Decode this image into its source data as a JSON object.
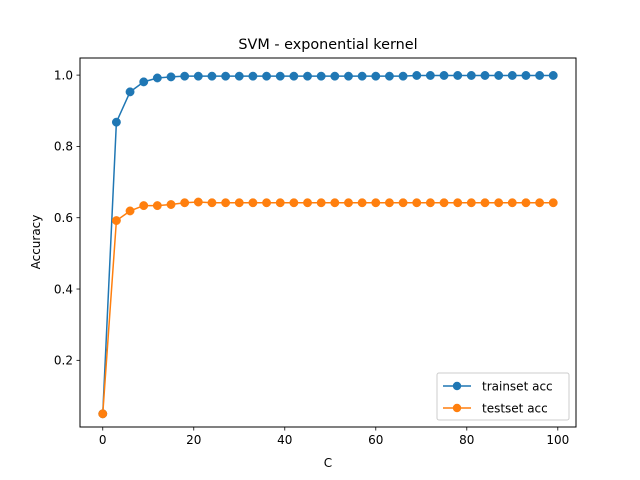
{
  "chart_data": {
    "type": "line",
    "title": "SVM - exponential kernel",
    "xlabel": "C",
    "ylabel": "Accuracy",
    "xlim": [
      -5,
      104
    ],
    "ylim": [
      0.013,
      1.048
    ],
    "xticks": [
      0,
      20,
      40,
      60,
      80,
      100
    ],
    "yticks": [
      0.2,
      0.4,
      0.6,
      0.8,
      1.0
    ],
    "xtick_labels": [
      "0",
      "20",
      "40",
      "60",
      "80",
      "100"
    ],
    "ytick_labels": [
      "0.2",
      "0.4",
      "0.6",
      "0.8",
      "1.0"
    ],
    "grid": false,
    "legend_position": "lower-right",
    "x": [
      0,
      3,
      6,
      9,
      12,
      15,
      18,
      21,
      24,
      27,
      30,
      33,
      36,
      39,
      42,
      45,
      48,
      51,
      54,
      57,
      60,
      63,
      66,
      69,
      72,
      75,
      78,
      81,
      84,
      87,
      90,
      93,
      96,
      99
    ],
    "series": [
      {
        "name": "trainset acc",
        "color": "#1f77b4",
        "values": [
          0.05,
          0.868,
          0.953,
          0.981,
          0.992,
          0.995,
          0.997,
          0.997,
          0.997,
          0.997,
          0.997,
          0.997,
          0.997,
          0.997,
          0.997,
          0.997,
          0.997,
          0.997,
          0.997,
          0.997,
          0.997,
          0.997,
          0.997,
          0.999,
          0.999,
          0.999,
          0.999,
          0.999,
          0.999,
          0.999,
          0.999,
          0.999,
          0.999,
          0.999
        ]
      },
      {
        "name": "testset acc",
        "color": "#ff7f0e",
        "values": [
          0.05,
          0.592,
          0.619,
          0.634,
          0.634,
          0.637,
          0.642,
          0.644,
          0.642,
          0.642,
          0.642,
          0.642,
          0.642,
          0.642,
          0.642,
          0.642,
          0.642,
          0.642,
          0.642,
          0.642,
          0.642,
          0.642,
          0.642,
          0.642,
          0.642,
          0.642,
          0.642,
          0.642,
          0.642,
          0.642,
          0.642,
          0.642,
          0.642,
          0.642
        ]
      }
    ]
  }
}
